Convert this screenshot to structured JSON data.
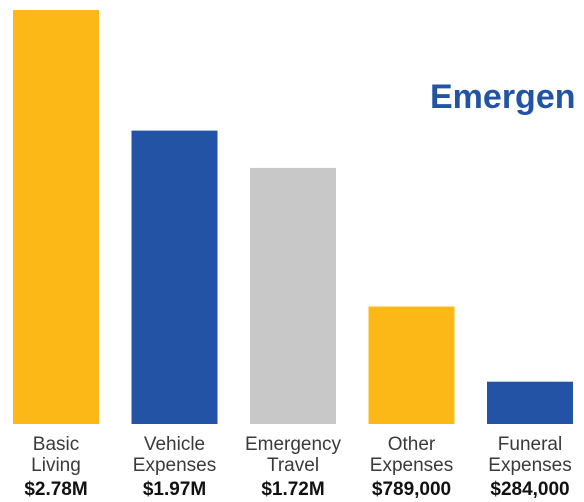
{
  "chart_data": {
    "type": "bar",
    "title": "Emergen",
    "categories": [
      [
        "Basic",
        "Living"
      ],
      [
        "Vehicle",
        "Expenses"
      ],
      [
        "Emergency",
        "Travel"
      ],
      [
        "Other",
        "Expenses"
      ],
      [
        "Funeral",
        "Expenses"
      ]
    ],
    "values": [
      2780000,
      1970000,
      1720000,
      789000,
      284000
    ],
    "value_labels": [
      "$2.78M",
      "$1.97M",
      "$1.72M",
      "$789,000",
      "$284,000"
    ],
    "colors": [
      "#FBB817",
      "#2353A5",
      "#C8C8C8",
      "#FBB817",
      "#2353A5"
    ],
    "title_color": "#2353A5",
    "ylim": [
      0,
      2780000
    ],
    "grid": false,
    "axes_visible": false
  }
}
